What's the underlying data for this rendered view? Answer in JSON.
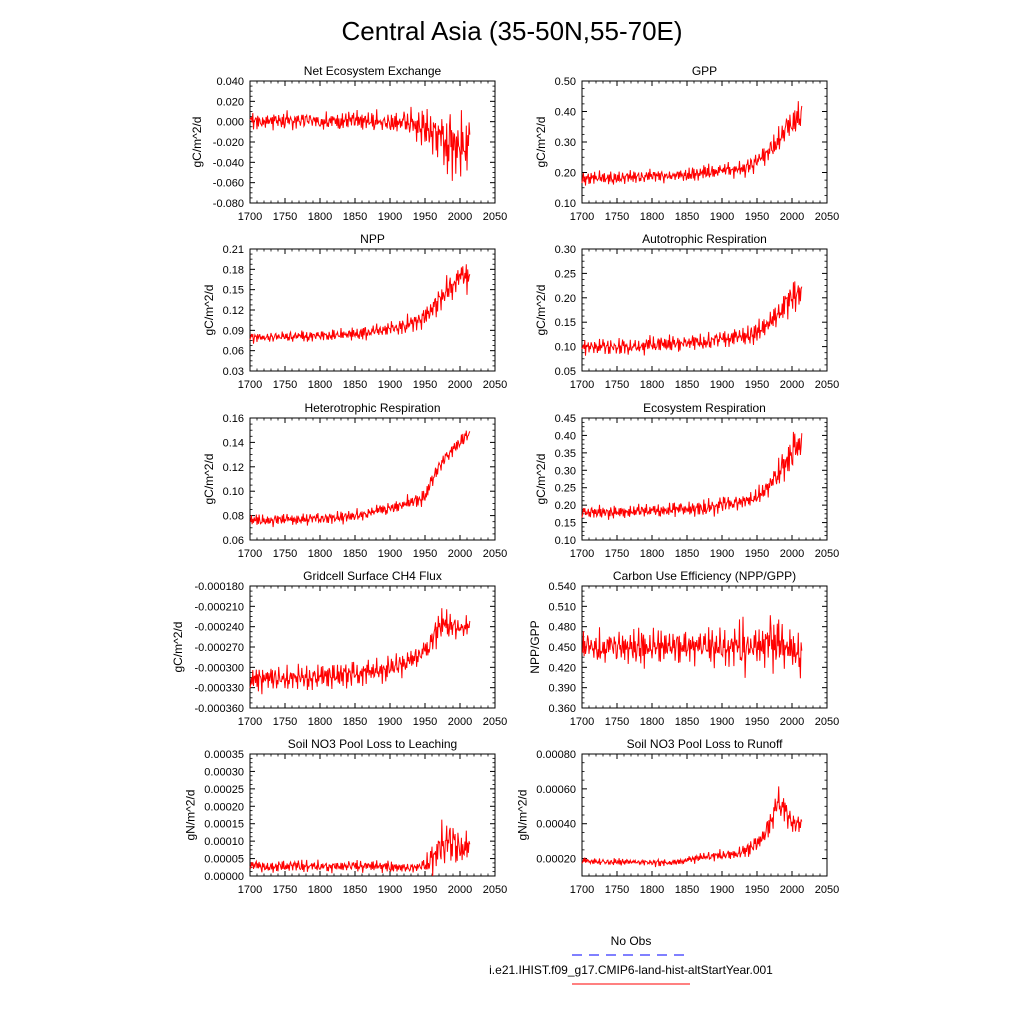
{
  "figure": {
    "title": "Central Asia (35-50N,55-70E)",
    "legend": {
      "entries": [
        {
          "label": "No Obs",
          "color": "#0000ff",
          "style": "dashed"
        },
        {
          "label": "i.e21.IHIST.f09_g17.CMIP6-land-hist-altStartYear.001",
          "color": "#ff0000",
          "style": "solid"
        }
      ],
      "placement": "bottom-right"
    },
    "series_color": "#ff0000"
  },
  "chart_data": [
    {
      "type": "line",
      "title": "Net Ecosystem Exchange",
      "ylabel": "gC/m^2/d",
      "xlim": [
        1700,
        2050
      ],
      "ylim": [
        -0.08,
        0.04
      ],
      "xticks": [
        "1700",
        "1750",
        "1800",
        "1850",
        "1900",
        "1950",
        "2000",
        "2050"
      ],
      "yticks": [
        "-0.080",
        "-0.060",
        "-0.040",
        "-0.020",
        "0.000",
        "0.020",
        "0.040"
      ],
      "series": [
        {
          "x": [
            1700,
            1710,
            1720,
            1730,
            1740,
            1750,
            1760,
            1770,
            1780,
            1790,
            1800,
            1810,
            1820,
            1830,
            1840,
            1850,
            1860,
            1870,
            1880,
            1890,
            1900,
            1910,
            1920,
            1930,
            1940,
            1950,
            1960,
            1970,
            1980,
            1990,
            2000,
            2010,
            2014
          ],
          "y": [
            0.002,
            0.001,
            0.0,
            0.002,
            0.001,
            0.001,
            0.0,
            0.001,
            0.002,
            0.001,
            0.0,
            0.001,
            0.001,
            0.0,
            0.002,
            0.001,
            0.0,
            0.001,
            0.0,
            -0.001,
            0.0,
            -0.001,
            0.001,
            -0.002,
            -0.004,
            -0.006,
            -0.01,
            -0.012,
            -0.02,
            -0.018,
            -0.025,
            -0.022,
            -0.018
          ],
          "amp": [
            0.008,
            0.008,
            0.009,
            0.008,
            0.008,
            0.009,
            0.008,
            0.008,
            0.009,
            0.008,
            0.008,
            0.009,
            0.008,
            0.009,
            0.008,
            0.009,
            0.009,
            0.009,
            0.01,
            0.01,
            0.01,
            0.011,
            0.012,
            0.016,
            0.014,
            0.018,
            0.022,
            0.026,
            0.032,
            0.03,
            0.03,
            0.034,
            0.032
          ]
        }
      ]
    },
    {
      "type": "line",
      "title": "GPP",
      "ylabel": "gC/m^2/d",
      "xlim": [
        1700,
        2050
      ],
      "ylim": [
        0.1,
        0.5
      ],
      "xticks": [
        "1700",
        "1750",
        "1800",
        "1850",
        "1900",
        "1950",
        "2000",
        "2050"
      ],
      "yticks": [
        "0.10",
        "0.20",
        "0.30",
        "0.40",
        "0.50"
      ],
      "series": [
        {
          "x": [
            1700,
            1720,
            1740,
            1760,
            1780,
            1800,
            1820,
            1840,
            1860,
            1880,
            1900,
            1920,
            1930,
            1940,
            1950,
            1960,
            1970,
            1980,
            1990,
            2000,
            2010,
            2014
          ],
          "y": [
            0.18,
            0.185,
            0.18,
            0.185,
            0.185,
            0.19,
            0.19,
            0.19,
            0.195,
            0.2,
            0.205,
            0.21,
            0.215,
            0.22,
            0.24,
            0.26,
            0.28,
            0.3,
            0.34,
            0.37,
            0.38,
            0.38
          ],
          "amp": [
            0.02,
            0.022,
            0.022,
            0.022,
            0.022,
            0.022,
            0.022,
            0.022,
            0.024,
            0.024,
            0.025,
            0.026,
            0.028,
            0.03,
            0.03,
            0.032,
            0.035,
            0.038,
            0.045,
            0.06,
            0.05,
            0.045
          ]
        }
      ]
    },
    {
      "type": "line",
      "title": "NPP",
      "ylabel": "gC/m^2/d",
      "xlim": [
        1700,
        2050
      ],
      "ylim": [
        0.03,
        0.21
      ],
      "xticks": [
        "1700",
        "1750",
        "1800",
        "1850",
        "1900",
        "1950",
        "2000",
        "2050"
      ],
      "yticks": [
        "0.03",
        "0.06",
        "0.09",
        "0.12",
        "0.15",
        "0.18",
        "0.21"
      ],
      "series": [
        {
          "x": [
            1700,
            1720,
            1740,
            1760,
            1780,
            1800,
            1820,
            1840,
            1860,
            1880,
            1900,
            1920,
            1930,
            1940,
            1950,
            1960,
            1970,
            1980,
            1990,
            2000,
            2010,
            2014
          ],
          "y": [
            0.08,
            0.08,
            0.08,
            0.081,
            0.082,
            0.082,
            0.083,
            0.084,
            0.086,
            0.088,
            0.092,
            0.097,
            0.1,
            0.105,
            0.11,
            0.12,
            0.135,
            0.15,
            0.16,
            0.168,
            0.17,
            0.16
          ],
          "amp": [
            0.008,
            0.008,
            0.008,
            0.008,
            0.008,
            0.008,
            0.009,
            0.009,
            0.01,
            0.01,
            0.011,
            0.012,
            0.013,
            0.014,
            0.014,
            0.015,
            0.018,
            0.02,
            0.022,
            0.025,
            0.025,
            0.02
          ]
        }
      ]
    },
    {
      "type": "line",
      "title": "Autotrophic Respiration",
      "ylabel": "gC/m^2/d",
      "xlim": [
        1700,
        2050
      ],
      "ylim": [
        0.05,
        0.3
      ],
      "xticks": [
        "1700",
        "1750",
        "1800",
        "1850",
        "1900",
        "1950",
        "2000",
        "2050"
      ],
      "yticks": [
        "0.05",
        "0.10",
        "0.15",
        "0.20",
        "0.25",
        "0.30"
      ],
      "series": [
        {
          "x": [
            1700,
            1720,
            1740,
            1760,
            1780,
            1800,
            1820,
            1840,
            1860,
            1880,
            1900,
            1920,
            1930,
            1940,
            1950,
            1960,
            1970,
            1980,
            1990,
            2000,
            2010,
            2014
          ],
          "y": [
            0.1,
            0.1,
            0.1,
            0.1,
            0.1,
            0.105,
            0.105,
            0.105,
            0.11,
            0.11,
            0.115,
            0.12,
            0.12,
            0.125,
            0.13,
            0.14,
            0.15,
            0.165,
            0.185,
            0.2,
            0.215,
            0.21
          ],
          "amp": [
            0.015,
            0.015,
            0.015,
            0.015,
            0.016,
            0.016,
            0.016,
            0.016,
            0.017,
            0.017,
            0.017,
            0.018,
            0.019,
            0.02,
            0.02,
            0.02,
            0.022,
            0.025,
            0.03,
            0.04,
            0.035,
            0.03
          ]
        }
      ]
    },
    {
      "type": "line",
      "title": "Heterotrophic Respiration",
      "ylabel": "gC/m^2/d",
      "xlim": [
        1700,
        2050
      ],
      "ylim": [
        0.06,
        0.16
      ],
      "xticks": [
        "1700",
        "1750",
        "1800",
        "1850",
        "1900",
        "1950",
        "2000",
        "2050"
      ],
      "yticks": [
        "0.06",
        "0.08",
        "0.10",
        "0.12",
        "0.14",
        "0.16"
      ],
      "series": [
        {
          "x": [
            1700,
            1720,
            1740,
            1760,
            1780,
            1800,
            1820,
            1840,
            1860,
            1880,
            1900,
            1920,
            1930,
            1940,
            1950,
            1960,
            1970,
            1980,
            1990,
            2000,
            2010,
            2014
          ],
          "y": [
            0.076,
            0.076,
            0.077,
            0.077,
            0.077,
            0.078,
            0.078,
            0.079,
            0.081,
            0.083,
            0.086,
            0.09,
            0.092,
            0.093,
            0.096,
            0.11,
            0.12,
            0.128,
            0.134,
            0.14,
            0.145,
            0.148
          ],
          "amp": [
            0.005,
            0.005,
            0.005,
            0.005,
            0.005,
            0.005,
            0.005,
            0.005,
            0.005,
            0.005,
            0.005,
            0.006,
            0.006,
            0.006,
            0.006,
            0.006,
            0.006,
            0.006,
            0.006,
            0.006,
            0.006,
            0.005
          ]
        }
      ]
    },
    {
      "type": "line",
      "title": "Ecosystem Respiration",
      "ylabel": "gC/m^2/d",
      "xlim": [
        1700,
        2050
      ],
      "ylim": [
        0.1,
        0.45
      ],
      "xticks": [
        "1700",
        "1750",
        "1800",
        "1850",
        "1900",
        "1950",
        "2000",
        "2050"
      ],
      "yticks": [
        "0.10",
        "0.15",
        "0.20",
        "0.25",
        "0.30",
        "0.35",
        "0.40",
        "0.45"
      ],
      "series": [
        {
          "x": [
            1700,
            1720,
            1740,
            1760,
            1780,
            1800,
            1820,
            1840,
            1860,
            1880,
            1900,
            1920,
            1930,
            1940,
            1950,
            1960,
            1970,
            1980,
            1990,
            2000,
            2010,
            2014
          ],
          "y": [
            0.18,
            0.18,
            0.18,
            0.18,
            0.185,
            0.185,
            0.185,
            0.19,
            0.19,
            0.195,
            0.2,
            0.205,
            0.21,
            0.215,
            0.225,
            0.24,
            0.26,
            0.29,
            0.32,
            0.35,
            0.37,
            0.37
          ],
          "amp": [
            0.02,
            0.02,
            0.02,
            0.02,
            0.021,
            0.021,
            0.021,
            0.021,
            0.022,
            0.022,
            0.023,
            0.024,
            0.025,
            0.026,
            0.027,
            0.03,
            0.032,
            0.035,
            0.04,
            0.055,
            0.045,
            0.04
          ]
        }
      ]
    },
    {
      "type": "line",
      "title": "Gridcell Surface CH4 Flux",
      "ylabel": "gC/m^2/d",
      "xlim": [
        1700,
        2050
      ],
      "ylim": [
        -0.00036,
        -0.00018
      ],
      "xticks": [
        "1700",
        "1750",
        "1800",
        "1850",
        "1900",
        "1950",
        "2000",
        "2050"
      ],
      "yticks": [
        "-0.000360",
        "-0.000330",
        "-0.000300",
        "-0.000270",
        "-0.000240",
        "-0.000210",
        "-0.000180"
      ],
      "series": [
        {
          "x": [
            1700,
            1720,
            1740,
            1760,
            1780,
            1800,
            1820,
            1840,
            1860,
            1880,
            1900,
            1920,
            1930,
            1940,
            1950,
            1960,
            1970,
            1980,
            1990,
            2000,
            2010,
            2014
          ],
          "y": [
            -0.00032,
            -0.000318,
            -0.000318,
            -0.000316,
            -0.000315,
            -0.000314,
            -0.000312,
            -0.00031,
            -0.000308,
            -0.000305,
            -0.0003,
            -0.000295,
            -0.00029,
            -0.000285,
            -0.000275,
            -0.000262,
            -0.00024,
            -0.000235,
            -0.00024,
            -0.000242,
            -0.000238,
            -0.00024
          ],
          "amp": [
            1.8e-05,
            1.8e-05,
            1.8e-05,
            1.8e-05,
            1.8e-05,
            1.8e-05,
            1.8e-05,
            1.8e-05,
            1.8e-05,
            1.7e-05,
            1.7e-05,
            1.7e-05,
            1.6e-05,
            1.6e-05,
            1.6e-05,
            1.8e-05,
            2.2e-05,
            2.2e-05,
            1.8e-05,
            1.6e-05,
            1.5e-05,
            1.2e-05
          ]
        }
      ]
    },
    {
      "type": "line",
      "title": "Carbon Use Efficiency (NPP/GPP)",
      "ylabel": "NPP/GPP",
      "xlim": [
        1700,
        2050
      ],
      "ylim": [
        0.36,
        0.54
      ],
      "xticks": [
        "1700",
        "1750",
        "1800",
        "1850",
        "1900",
        "1950",
        "2000",
        "2050"
      ],
      "yticks": [
        "0.360",
        "0.390",
        "0.420",
        "0.450",
        "0.480",
        "0.510",
        "0.540"
      ],
      "series": [
        {
          "x": [
            1700,
            1720,
            1740,
            1760,
            1780,
            1800,
            1820,
            1840,
            1860,
            1880,
            1900,
            1920,
            1930,
            1940,
            1950,
            1960,
            1970,
            1980,
            1990,
            2000,
            2010,
            2014
          ],
          "y": [
            0.452,
            0.452,
            0.451,
            0.451,
            0.451,
            0.451,
            0.451,
            0.451,
            0.451,
            0.451,
            0.45,
            0.45,
            0.448,
            0.45,
            0.45,
            0.452,
            0.455,
            0.458,
            0.455,
            0.45,
            0.445,
            0.42
          ],
          "amp": [
            0.025,
            0.026,
            0.026,
            0.026,
            0.026,
            0.026,
            0.026,
            0.026,
            0.026,
            0.026,
            0.026,
            0.028,
            0.04,
            0.03,
            0.028,
            0.032,
            0.04,
            0.045,
            0.035,
            0.035,
            0.04,
            0.05
          ]
        }
      ]
    },
    {
      "type": "line",
      "title": "Soil NO3 Pool Loss to Leaching",
      "ylabel": "gN/m^2/d",
      "xlim": [
        1700,
        2050
      ],
      "ylim": [
        0,
        0.00035
      ],
      "xticks": [
        "1700",
        "1750",
        "1800",
        "1850",
        "1900",
        "1950",
        "2000",
        "2050"
      ],
      "yticks": [
        "0.00000",
        "0.00005",
        "0.00010",
        "0.00015",
        "0.00020",
        "0.00025",
        "0.00030",
        "0.00035"
      ],
      "series": [
        {
          "x": [
            1700,
            1720,
            1740,
            1760,
            1780,
            1800,
            1820,
            1840,
            1860,
            1880,
            1900,
            1920,
            1940,
            1950,
            1960,
            1970,
            1980,
            1990,
            2000,
            2010,
            2014
          ],
          "y": [
            3e-05,
            2.8e-05,
            2.8e-05,
            2.8e-05,
            2.8e-05,
            2.8e-05,
            2.8e-05,
            2.8e-05,
            2.8e-05,
            2.8e-05,
            2.6e-05,
            2.5e-05,
            2.5e-05,
            3e-05,
            5e-05,
            8e-05,
            0.0001,
            9e-05,
            8e-05,
            7e-05,
            8e-05
          ],
          "amp": [
            1.8e-05,
            1.6e-05,
            1.6e-05,
            1.6e-05,
            1.6e-05,
            1.6e-05,
            1.6e-05,
            1.6e-05,
            1.6e-05,
            1.6e-05,
            1.5e-05,
            1.4e-05,
            1.4e-05,
            2e-05,
            4e-05,
            6e-05,
            9e-05,
            7e-05,
            5e-05,
            5e-05,
            4e-05
          ]
        }
      ]
    },
    {
      "type": "line",
      "title": "Soil NO3 Pool Loss to Runoff",
      "ylabel": "gN/m^2/d",
      "xlim": [
        1700,
        2050
      ],
      "ylim": [
        0.0001,
        0.0008
      ],
      "xticks": [
        "1700",
        "1750",
        "1800",
        "1850",
        "1900",
        "1950",
        "2000",
        "2050"
      ],
      "yticks": [
        "0.00020",
        "0.00040",
        "0.00060",
        "0.00080"
      ],
      "series": [
        {
          "x": [
            1700,
            1720,
            1740,
            1760,
            1780,
            1800,
            1820,
            1840,
            1860,
            1880,
            1900,
            1920,
            1930,
            1940,
            1950,
            1960,
            1970,
            1980,
            1990,
            2000,
            2010,
            2014
          ],
          "y": [
            0.00019,
            0.00018,
            0.00018,
            0.00018,
            0.00018,
            0.000175,
            0.000175,
            0.00018,
            0.0002,
            0.00021,
            0.00022,
            0.000225,
            0.00024,
            0.00026,
            0.00028,
            0.00033,
            0.00042,
            0.0005,
            0.00048,
            0.0004,
            0.0004,
            0.00041
          ],
          "amp": [
            2e-05,
            2e-05,
            2e-05,
            2e-05,
            2e-05,
            2e-05,
            2e-05,
            2e-05,
            2.5e-05,
            2.5e-05,
            3e-05,
            3e-05,
            4e-05,
            4e-05,
            4.5e-05,
            5e-05,
            7e-05,
            0.0001,
            8e-05,
            6e-05,
            5e-05,
            4e-05
          ]
        }
      ]
    }
  ]
}
